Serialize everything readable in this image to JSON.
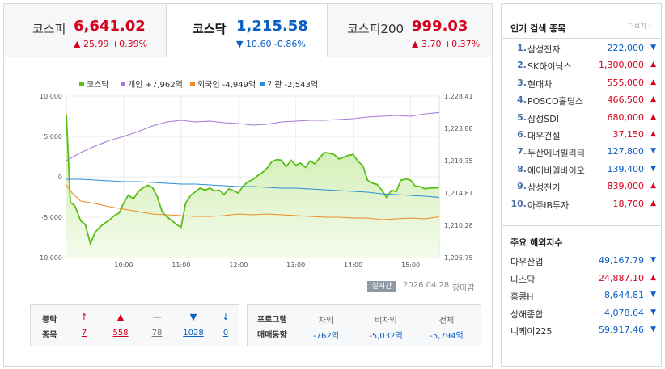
{
  "tabs": [
    {
      "name": "코스피",
      "value": "6,641.02",
      "change": "▲ 25.99 +0.39%",
      "dir": "up"
    },
    {
      "name": "코스닥",
      "value": "1,215.58",
      "change": "▼ 10.60 -0.86%",
      "dir": "down"
    },
    {
      "name": "코스피200",
      "value": "999.03",
      "change": "▲ 3.70 +0.37%",
      "dir": "up"
    }
  ],
  "legend": [
    {
      "label": "코스닥",
      "color": "#5bbf19"
    },
    {
      "label": "개인 +7,962억",
      "color": "#a57bd6"
    },
    {
      "label": "외국인 -4,949억",
      "color": "#f08a24"
    },
    {
      "label": "기관 -2,543억",
      "color": "#2a8fd8"
    }
  ],
  "chart_data": {
    "type": "line",
    "x_ticks": [
      "10:00",
      "11:00",
      "12:00",
      "13:00",
      "14:00",
      "15:00"
    ],
    "y_left_ticks": [
      "10,000",
      "5,000",
      "0",
      "-5,000",
      "-10,000"
    ],
    "y_right_ticks": [
      "1,228.41",
      "1,223.88",
      "1,219.35",
      "1,214.81",
      "1,210.28",
      "1,205.75"
    ],
    "y_left_range": [
      -10000,
      10000
    ],
    "y_right_range": [
      1205.75,
      1228.41
    ],
    "x_range": [
      9,
      15.5
    ],
    "series": [
      {
        "name": "코스닥",
        "axis": "right",
        "color": "#5bbf19",
        "x": [
          9.0,
          9.07,
          9.15,
          9.25,
          9.33,
          9.42,
          9.5,
          9.58,
          9.67,
          9.75,
          9.83,
          9.92,
          10.0,
          10.08,
          10.17,
          10.25,
          10.33,
          10.42,
          10.5,
          10.58,
          10.67,
          10.75,
          10.83,
          10.92,
          11.0,
          11.08,
          11.17,
          11.25,
          11.33,
          11.42,
          11.5,
          11.58,
          11.67,
          11.75,
          11.83,
          11.92,
          12.0,
          12.08,
          12.17,
          12.25,
          12.33,
          12.42,
          12.5,
          12.58,
          12.67,
          12.75,
          12.83,
          12.92,
          13.0,
          13.08,
          13.17,
          13.25,
          13.33,
          13.42,
          13.5,
          13.58,
          13.67,
          13.75,
          13.83,
          13.92,
          14.0,
          14.08,
          14.17,
          14.25,
          14.33,
          14.42,
          14.5,
          14.58,
          14.67,
          14.75,
          14.83,
          14.92,
          15.0,
          15.08,
          15.17,
          15.25,
          15.33,
          15.42,
          15.5
        ],
        "values": [
          1225.9,
          1213.5,
          1213.0,
          1210.9,
          1210.4,
          1207.7,
          1209.3,
          1210.0,
          1210.6,
          1211.0,
          1211.6,
          1212.0,
          1213.4,
          1214.5,
          1214.0,
          1215.0,
          1215.5,
          1215.9,
          1215.6,
          1214.4,
          1212.2,
          1211.5,
          1211.0,
          1210.4,
          1210.0,
          1213.4,
          1214.5,
          1215.0,
          1215.5,
          1215.2,
          1215.5,
          1215.1,
          1215.2,
          1214.6,
          1215.4,
          1215.1,
          1214.8,
          1215.8,
          1216.4,
          1216.7,
          1217.2,
          1217.7,
          1218.3,
          1219.2,
          1219.5,
          1219.4,
          1218.5,
          1219.4,
          1218.7,
          1219.0,
          1218.4,
          1219.3,
          1218.9,
          1219.8,
          1220.5,
          1220.4,
          1220.2,
          1219.6,
          1219.8,
          1220.1,
          1220.2,
          1219.3,
          1218.6,
          1216.6,
          1216.2,
          1216.0,
          1215.2,
          1214.2,
          1215.2,
          1215.0,
          1216.6,
          1216.8,
          1216.6,
          1215.8,
          1215.7,
          1215.4,
          1215.5,
          1215.5,
          1215.6
        ]
      },
      {
        "name": "개인 +7,962억",
        "axis": "left",
        "color": "#a57bd6",
        "x": [
          9.0,
          9.1,
          9.25,
          9.5,
          9.75,
          10.0,
          10.25,
          10.5,
          10.75,
          11.0,
          11.25,
          11.5,
          11.75,
          12.0,
          12.25,
          12.5,
          12.75,
          13.0,
          13.25,
          13.5,
          13.75,
          14.0,
          14.25,
          14.5,
          14.75,
          15.0,
          15.25,
          15.5
        ],
        "values": [
          2000,
          2400,
          3000,
          3800,
          4500,
          5000,
          5600,
          6300,
          6800,
          7000,
          6800,
          6900,
          6700,
          6600,
          6400,
          6500,
          6800,
          6900,
          7000,
          7000,
          7100,
          7200,
          7400,
          7500,
          7600,
          7500,
          7800,
          7962
        ]
      },
      {
        "name": "외국인 -4,949억",
        "axis": "left",
        "color": "#f08a24",
        "x": [
          9.0,
          9.1,
          9.25,
          9.5,
          9.75,
          10.0,
          10.25,
          10.5,
          10.75,
          11.0,
          11.25,
          11.5,
          11.75,
          12.0,
          12.25,
          12.5,
          12.75,
          13.0,
          13.25,
          13.5,
          13.75,
          14.0,
          14.25,
          14.5,
          14.75,
          15.0,
          15.25,
          15.5
        ],
        "values": [
          -1000,
          -2000,
          -3000,
          -3300,
          -3700,
          -4000,
          -4300,
          -4600,
          -4700,
          -4800,
          -4900,
          -4900,
          -4800,
          -4600,
          -4700,
          -4600,
          -4700,
          -4800,
          -4900,
          -5000,
          -5000,
          -5100,
          -5100,
          -5300,
          -5200,
          -5100,
          -5200,
          -4949
        ]
      },
      {
        "name": "기관 -2,543억",
        "axis": "left",
        "color": "#2a8fd8",
        "x": [
          9.0,
          9.25,
          9.5,
          9.75,
          10.0,
          10.25,
          10.5,
          10.75,
          11.0,
          11.25,
          11.5,
          11.75,
          12.0,
          12.25,
          12.5,
          12.75,
          13.0,
          13.25,
          13.5,
          13.75,
          14.0,
          14.25,
          14.5,
          14.75,
          15.0,
          15.25,
          15.5
        ],
        "values": [
          -300,
          -300,
          -400,
          -500,
          -600,
          -600,
          -700,
          -800,
          -900,
          -900,
          -1000,
          -1100,
          -1200,
          -1200,
          -1300,
          -1400,
          -1400,
          -1500,
          -1600,
          -1700,
          -1800,
          -1900,
          -2100,
          -2200,
          -2300,
          -2400,
          -2543
        ]
      }
    ]
  },
  "status": {
    "badge": "실시간",
    "date": "2026.04.28",
    "close": "장마감"
  },
  "breadth": {
    "label_line1": "등락",
    "label_line2": "종목",
    "items": [
      {
        "icon": "↑",
        "value": "7",
        "color": "#d6001c"
      },
      {
        "icon": "▲",
        "value": "558",
        "color": "#d6001c"
      },
      {
        "icon": "—",
        "value": "78",
        "color": "#777777"
      },
      {
        "icon": "▼",
        "value": "1028",
        "color": "#0b5ec4"
      },
      {
        "icon": "↓",
        "value": "0",
        "color": "#0b5ec4"
      }
    ]
  },
  "program": {
    "label_line1": "프로그램",
    "label_line2": "매매동향",
    "cols": [
      {
        "head": "차익",
        "value": "-762억"
      },
      {
        "head": "비차익",
        "value": "-5,032억"
      },
      {
        "head": "전체",
        "value": "-5,794억"
      }
    ]
  },
  "popular": {
    "title": "인기 검색 종목",
    "more": "더보기",
    "items": [
      {
        "rank": "1.",
        "name": "삼성전자",
        "price": "222,000",
        "dir": "down"
      },
      {
        "rank": "2.",
        "name": "SK하이닉스",
        "price": "1,300,000",
        "dir": "up"
      },
      {
        "rank": "3.",
        "name": "현대차",
        "price": "555,000",
        "dir": "up"
      },
      {
        "rank": "4.",
        "name": "POSCO홀딩스",
        "price": "466,500",
        "dir": "up"
      },
      {
        "rank": "5.",
        "name": "삼성SDI",
        "price": "680,000",
        "dir": "up"
      },
      {
        "rank": "6.",
        "name": "대우건설",
        "price": "37,150",
        "dir": "up"
      },
      {
        "rank": "7.",
        "name": "두산에너빌리티",
        "price": "127,800",
        "dir": "down"
      },
      {
        "rank": "8.",
        "name": "에이비엘바이오",
        "price": "139,400",
        "dir": "down"
      },
      {
        "rank": "9.",
        "name": "삼성전기",
        "price": "839,000",
        "dir": "up"
      },
      {
        "rank": "10.",
        "name": "아주IB투자",
        "price": "18,700",
        "dir": "up"
      }
    ]
  },
  "world": {
    "title": "주요 해외지수",
    "items": [
      {
        "name": "다우산업",
        "price": "49,167.79",
        "dir": "down"
      },
      {
        "name": "나스닥",
        "price": "24,887.10",
        "dir": "up"
      },
      {
        "name": "홍콩H",
        "price": "8,644.81",
        "dir": "down"
      },
      {
        "name": "상해종합",
        "price": "4,078.64",
        "dir": "down"
      },
      {
        "name": "니케이225",
        "price": "59,917.46",
        "dir": "down"
      }
    ]
  }
}
